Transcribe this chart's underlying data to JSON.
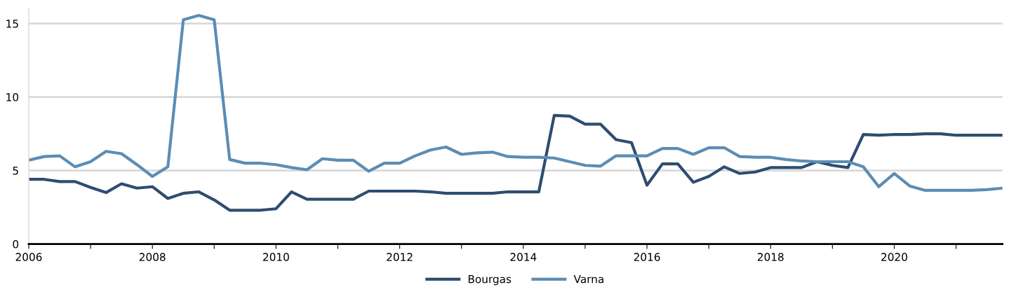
{
  "chart_data": {
    "type": "line",
    "x": [
      2006,
      2006.25,
      2006.5,
      2006.75,
      2007,
      2007.25,
      2007.5,
      2007.75,
      2008,
      2008.25,
      2008.5,
      2008.75,
      2009,
      2009.25,
      2009.5,
      2009.75,
      2010,
      2010.25,
      2010.5,
      2010.75,
      2011,
      2011.25,
      2011.5,
      2011.75,
      2012,
      2012.25,
      2012.5,
      2012.75,
      2013,
      2013.25,
      2013.5,
      2013.75,
      2014,
      2014.25,
      2014.5,
      2014.75,
      2015,
      2015.25,
      2015.5,
      2015.75,
      2016,
      2016.25,
      2016.5,
      2016.75,
      2017,
      2017.25,
      2017.5,
      2017.75,
      2018,
      2018.25,
      2018.5,
      2018.75,
      2019,
      2019.25,
      2019.5,
      2019.75,
      2020,
      2020.25,
      2020.5,
      2020.75,
      2021,
      2021.25,
      2021.5,
      2021.75
    ],
    "series": [
      {
        "name": "Bourgas",
        "color": "#2e4d70",
        "values": [
          4.4,
          4.4,
          4.25,
          4.25,
          3.85,
          3.5,
          4.1,
          3.8,
          3.9,
          3.1,
          3.45,
          3.55,
          3.0,
          2.3,
          2.3,
          2.3,
          2.4,
          3.55,
          3.05,
          3.05,
          3.05,
          3.05,
          3.6,
          3.6,
          3.6,
          3.6,
          3.55,
          3.45,
          3.45,
          3.45,
          3.45,
          3.55,
          3.55,
          3.55,
          8.75,
          8.7,
          8.15,
          8.15,
          7.1,
          6.9,
          4.0,
          5.45,
          5.45,
          4.2,
          4.6,
          5.25,
          4.8,
          4.9,
          5.2,
          5.2,
          5.2,
          5.6,
          5.35,
          5.2,
          7.45,
          7.4,
          7.45,
          7.45,
          7.5,
          7.5,
          7.4,
          7.4,
          7.4,
          7.4
        ]
      },
      {
        "name": "Varna",
        "color": "#5b8db5",
        "values": [
          5.7,
          5.95,
          6.0,
          5.25,
          5.6,
          6.3,
          6.15,
          5.4,
          4.6,
          5.25,
          15.25,
          15.55,
          15.25,
          5.75,
          5.5,
          5.5,
          5.4,
          5.2,
          5.05,
          5.8,
          5.7,
          5.7,
          4.95,
          5.5,
          5.5,
          6.0,
          6.4,
          6.6,
          6.1,
          6.2,
          6.25,
          5.95,
          5.9,
          5.9,
          5.85,
          5.6,
          5.35,
          5.3,
          6.0,
          6.0,
          6.0,
          6.5,
          6.5,
          6.1,
          6.55,
          6.55,
          5.95,
          5.9,
          5.9,
          5.75,
          5.65,
          5.6,
          5.6,
          5.6,
          5.25,
          3.9,
          4.8,
          3.95,
          3.65,
          3.65,
          3.65,
          3.65,
          3.7,
          3.8
        ]
      }
    ],
    "xlim": [
      2006,
      2021.75
    ],
    "xticks": [
      2006,
      {
        "value": 2007,
        "label": null
      },
      2008,
      {
        "value": 2009,
        "label": null
      },
      2010,
      {
        "value": 2011,
        "label": null
      },
      2012,
      {
        "value": 2013,
        "label": null
      },
      2014,
      {
        "value": 2015,
        "label": null
      },
      2016,
      {
        "value": 2017,
        "label": null
      },
      2018,
      {
        "value": 2019,
        "label": null
      },
      2020,
      {
        "value": 2021,
        "label": null
      }
    ],
    "ylim": [
      0,
      16
    ],
    "yticks": [
      0,
      5,
      10,
      15
    ],
    "grid": "y",
    "legend": "bottom",
    "marker": "none",
    "line_style": "solid"
  }
}
